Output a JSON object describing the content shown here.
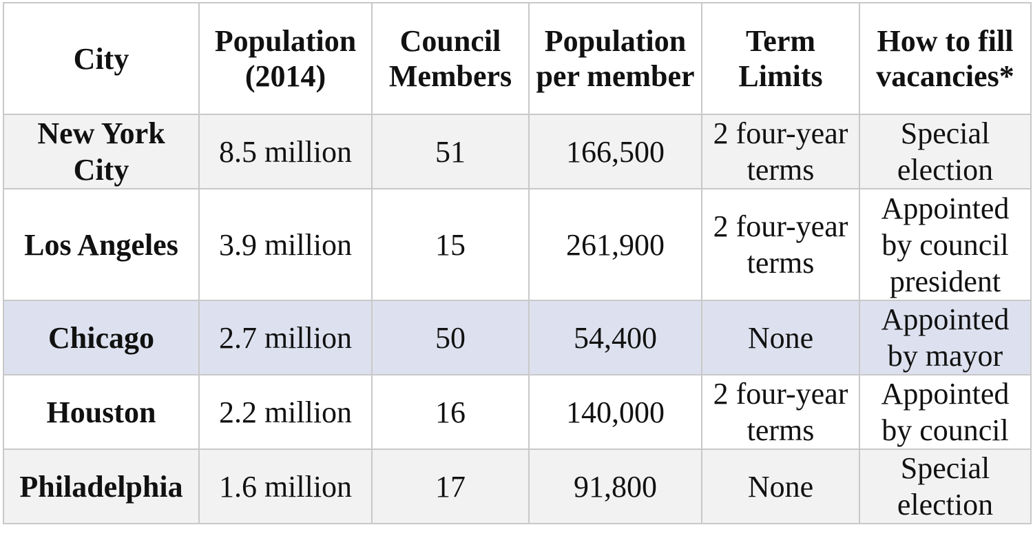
{
  "table": {
    "headers": [
      "City",
      "Population (2014)",
      "Council Members",
      "Population per member",
      "Term Limits",
      "How to fill vacancies*"
    ],
    "rows": [
      {
        "city": "New York City",
        "population": "8.5 million",
        "council_members": "51",
        "population_per_member": "166,500",
        "term_limits": "2 four-year terms",
        "vacancies": "Special election",
        "row_color": "#f2f2f2"
      },
      {
        "city": "Los Angeles",
        "population": "3.9 million",
        "council_members": "15",
        "population_per_member": "261,900",
        "term_limits": "2 four-year terms",
        "vacancies": "Appointed by council president",
        "row_color": "#ffffff"
      },
      {
        "city": "Chicago",
        "population": "2.7 million",
        "council_members": "50",
        "population_per_member": "54,400",
        "term_limits": "None",
        "vacancies": "Appointed by mayor",
        "row_color": "#dde1ef"
      },
      {
        "city": "Houston",
        "population": "2.2 million",
        "council_members": "16",
        "population_per_member": "140,000",
        "term_limits": "2 four-year terms",
        "vacancies": "Appointed by council",
        "row_color": "#ffffff"
      },
      {
        "city": "Philadelphia",
        "population": "1.6 million",
        "council_members": "17",
        "population_per_member": "91,800",
        "term_limits": "None",
        "vacancies": "Special election",
        "row_color": "#f2f2f2"
      }
    ]
  },
  "colors": {
    "border": "#c8c8c8",
    "highlight_row": "#dde1ef",
    "shaded_row": "#f2f2f2"
  }
}
